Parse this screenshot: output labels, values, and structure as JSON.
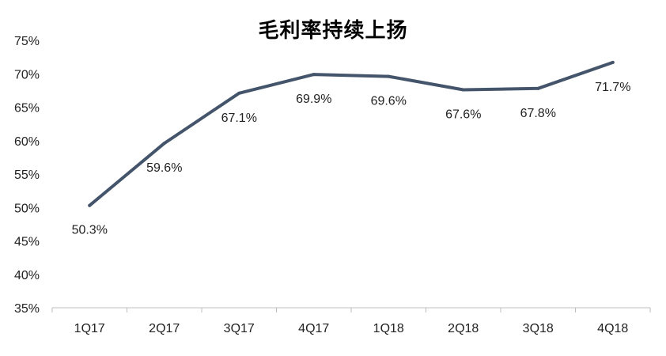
{
  "chart_data": {
    "type": "line",
    "title": "毛利率持续上扬",
    "xlabel": "",
    "ylabel": "",
    "categories": [
      "1Q17",
      "2Q17",
      "3Q17",
      "4Q17",
      "1Q18",
      "2Q18",
      "3Q18",
      "4Q18"
    ],
    "series": [
      {
        "values": [
          50.3,
          59.6,
          67.1,
          69.9,
          69.6,
          67.6,
          67.8,
          71.7
        ],
        "data_labels": [
          "50.3%",
          "59.6%",
          "67.1%",
          "69.9%",
          "69.6%",
          "67.6%",
          "67.8%",
          "71.7%"
        ],
        "color": "#44546A"
      }
    ],
    "ylim": [
      35,
      75
    ],
    "y_ticks": [
      35,
      40,
      45,
      50,
      55,
      60,
      65,
      70,
      75
    ],
    "y_tick_labels": [
      "35%",
      "40%",
      "45%",
      "50%",
      "55%",
      "60%",
      "65%",
      "70%",
      "75%"
    ],
    "grid": false,
    "legend": "none"
  }
}
